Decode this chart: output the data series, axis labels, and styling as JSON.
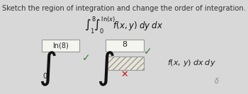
{
  "title": "Sketch the region of integration and change the order of integration.",
  "title_fontsize": 7.2,
  "title_color": "#333333",
  "bg_color": "#d8d8d8",
  "blank_box_color": "#e8e5d8",
  "blank_box_edge": "#999999",
  "white_box_color": "#f5f5f0",
  "filled_text_ln8": "ln(8)",
  "filled_text_8": "8",
  "checkmark_color": "#3a7a3a",
  "x_color": "#cc1111",
  "integral_color": "#111111",
  "text_color": "#222222"
}
